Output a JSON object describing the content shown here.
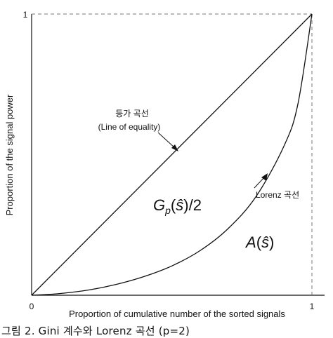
{
  "chart_data": {
    "type": "line",
    "xlabel": "Proportion of cumulative number of the sorted signals",
    "ylabel": "Proportion of the signal power",
    "xlim": [
      0,
      1
    ],
    "ylim": [
      0,
      1
    ],
    "x_ticks": [
      "0",
      "1"
    ],
    "y_ticks": [
      "1"
    ],
    "grid": false,
    "series": [
      {
        "name": "등가 곡선 (Line of equality)",
        "x": [
          0,
          1
        ],
        "y": [
          0,
          1
        ]
      },
      {
        "name": "Lorenz 곡선",
        "x": [
          0,
          0.1,
          0.2,
          0.3,
          0.4,
          0.5,
          0.6,
          0.7,
          0.8,
          0.9,
          0.95,
          1.0
        ],
        "y": [
          0,
          0.006,
          0.018,
          0.038,
          0.066,
          0.104,
          0.158,
          0.236,
          0.35,
          0.53,
          0.68,
          1.0
        ]
      }
    ],
    "annotations": {
      "equality_label_line1": "등가 곡선",
      "equality_label_line2": "(Line of equality)",
      "lorenz_label": "Lorenz 곡선",
      "gini_region_label": "Gp(ŝ)/2",
      "area_region_label": "A(ŝ)"
    }
  },
  "caption": "그림 2. Gini 계수와 Lorenz 곡선 (p=2)"
}
